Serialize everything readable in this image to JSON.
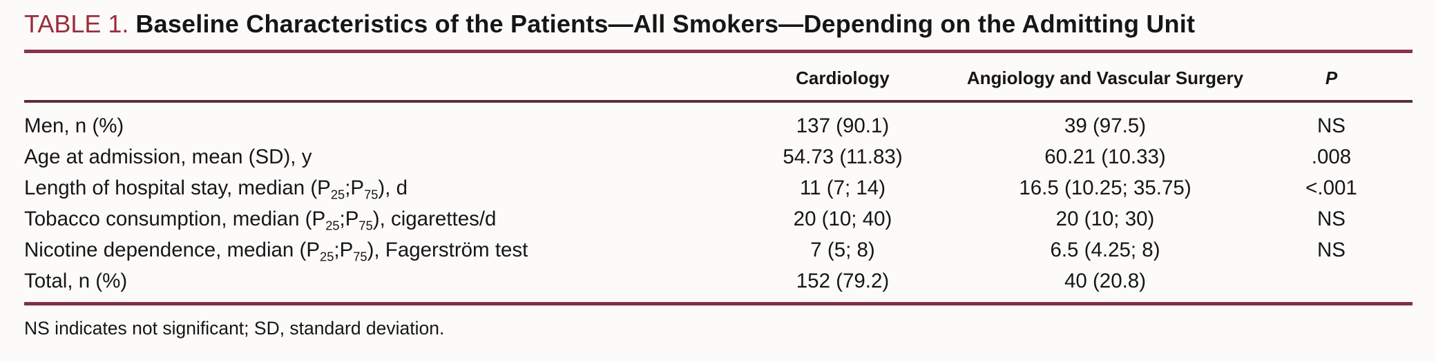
{
  "page": {
    "background": "#fcfbf9",
    "text_color": "#161616",
    "accent_maroon": "#9B2C3D",
    "title_rule_color": "#8A3248",
    "header_rule_color": "#5E2C3A",
    "bottom_rule_color": "#7E3044"
  },
  "title": {
    "label": "TABLE 1.",
    "text": "Baseline Characteristics of the Patients—All Smokers—Depending on the Admitting Unit"
  },
  "table": {
    "header": {
      "row_label": "",
      "cardiology": "Cardiology",
      "angiology": "Angiology and Vascular Surgery",
      "p": "P"
    },
    "rows": [
      {
        "label": [
          {
            "t": "Men, n (%)"
          }
        ],
        "cardiology": "137 (90.1)",
        "angiology": "39 (97.5)",
        "p": "NS"
      },
      {
        "label": [
          {
            "t": "Age at admission, mean (SD), y"
          }
        ],
        "cardiology": "54.73 (11.83)",
        "angiology": "60.21 (10.33)",
        "p": ".008"
      },
      {
        "label": [
          {
            "t": "Length of hospital stay, median (P"
          },
          {
            "t": "25",
            "sub": true
          },
          {
            "t": ";P"
          },
          {
            "t": "75",
            "sub": true
          },
          {
            "t": "), d"
          }
        ],
        "cardiology": "11 (7; 14)",
        "angiology": "16.5 (10.25; 35.75)",
        "p": "<.001"
      },
      {
        "label": [
          {
            "t": "Tobacco consumption, median (P"
          },
          {
            "t": "25",
            "sub": true
          },
          {
            "t": ";P"
          },
          {
            "t": "75",
            "sub": true
          },
          {
            "t": "), cigarettes/d"
          }
        ],
        "cardiology": "20 (10; 40)",
        "angiology": "20 (10; 30)",
        "p": "NS"
      },
      {
        "label": [
          {
            "t": "Nicotine dependence, median (P"
          },
          {
            "t": "25",
            "sub": true
          },
          {
            "t": ";P"
          },
          {
            "t": "75",
            "sub": true
          },
          {
            "t": "), Fagerström test"
          }
        ],
        "cardiology": "7 (5; 8)",
        "angiology": "6.5 (4.25; 8)",
        "p": "NS"
      },
      {
        "label": [
          {
            "t": "Total, n (%)"
          }
        ],
        "cardiology": "152 (79.2)",
        "angiology": "40 (20.8)",
        "p": ""
      }
    ]
  },
  "footnote": "NS indicates not significant; SD, standard deviation."
}
